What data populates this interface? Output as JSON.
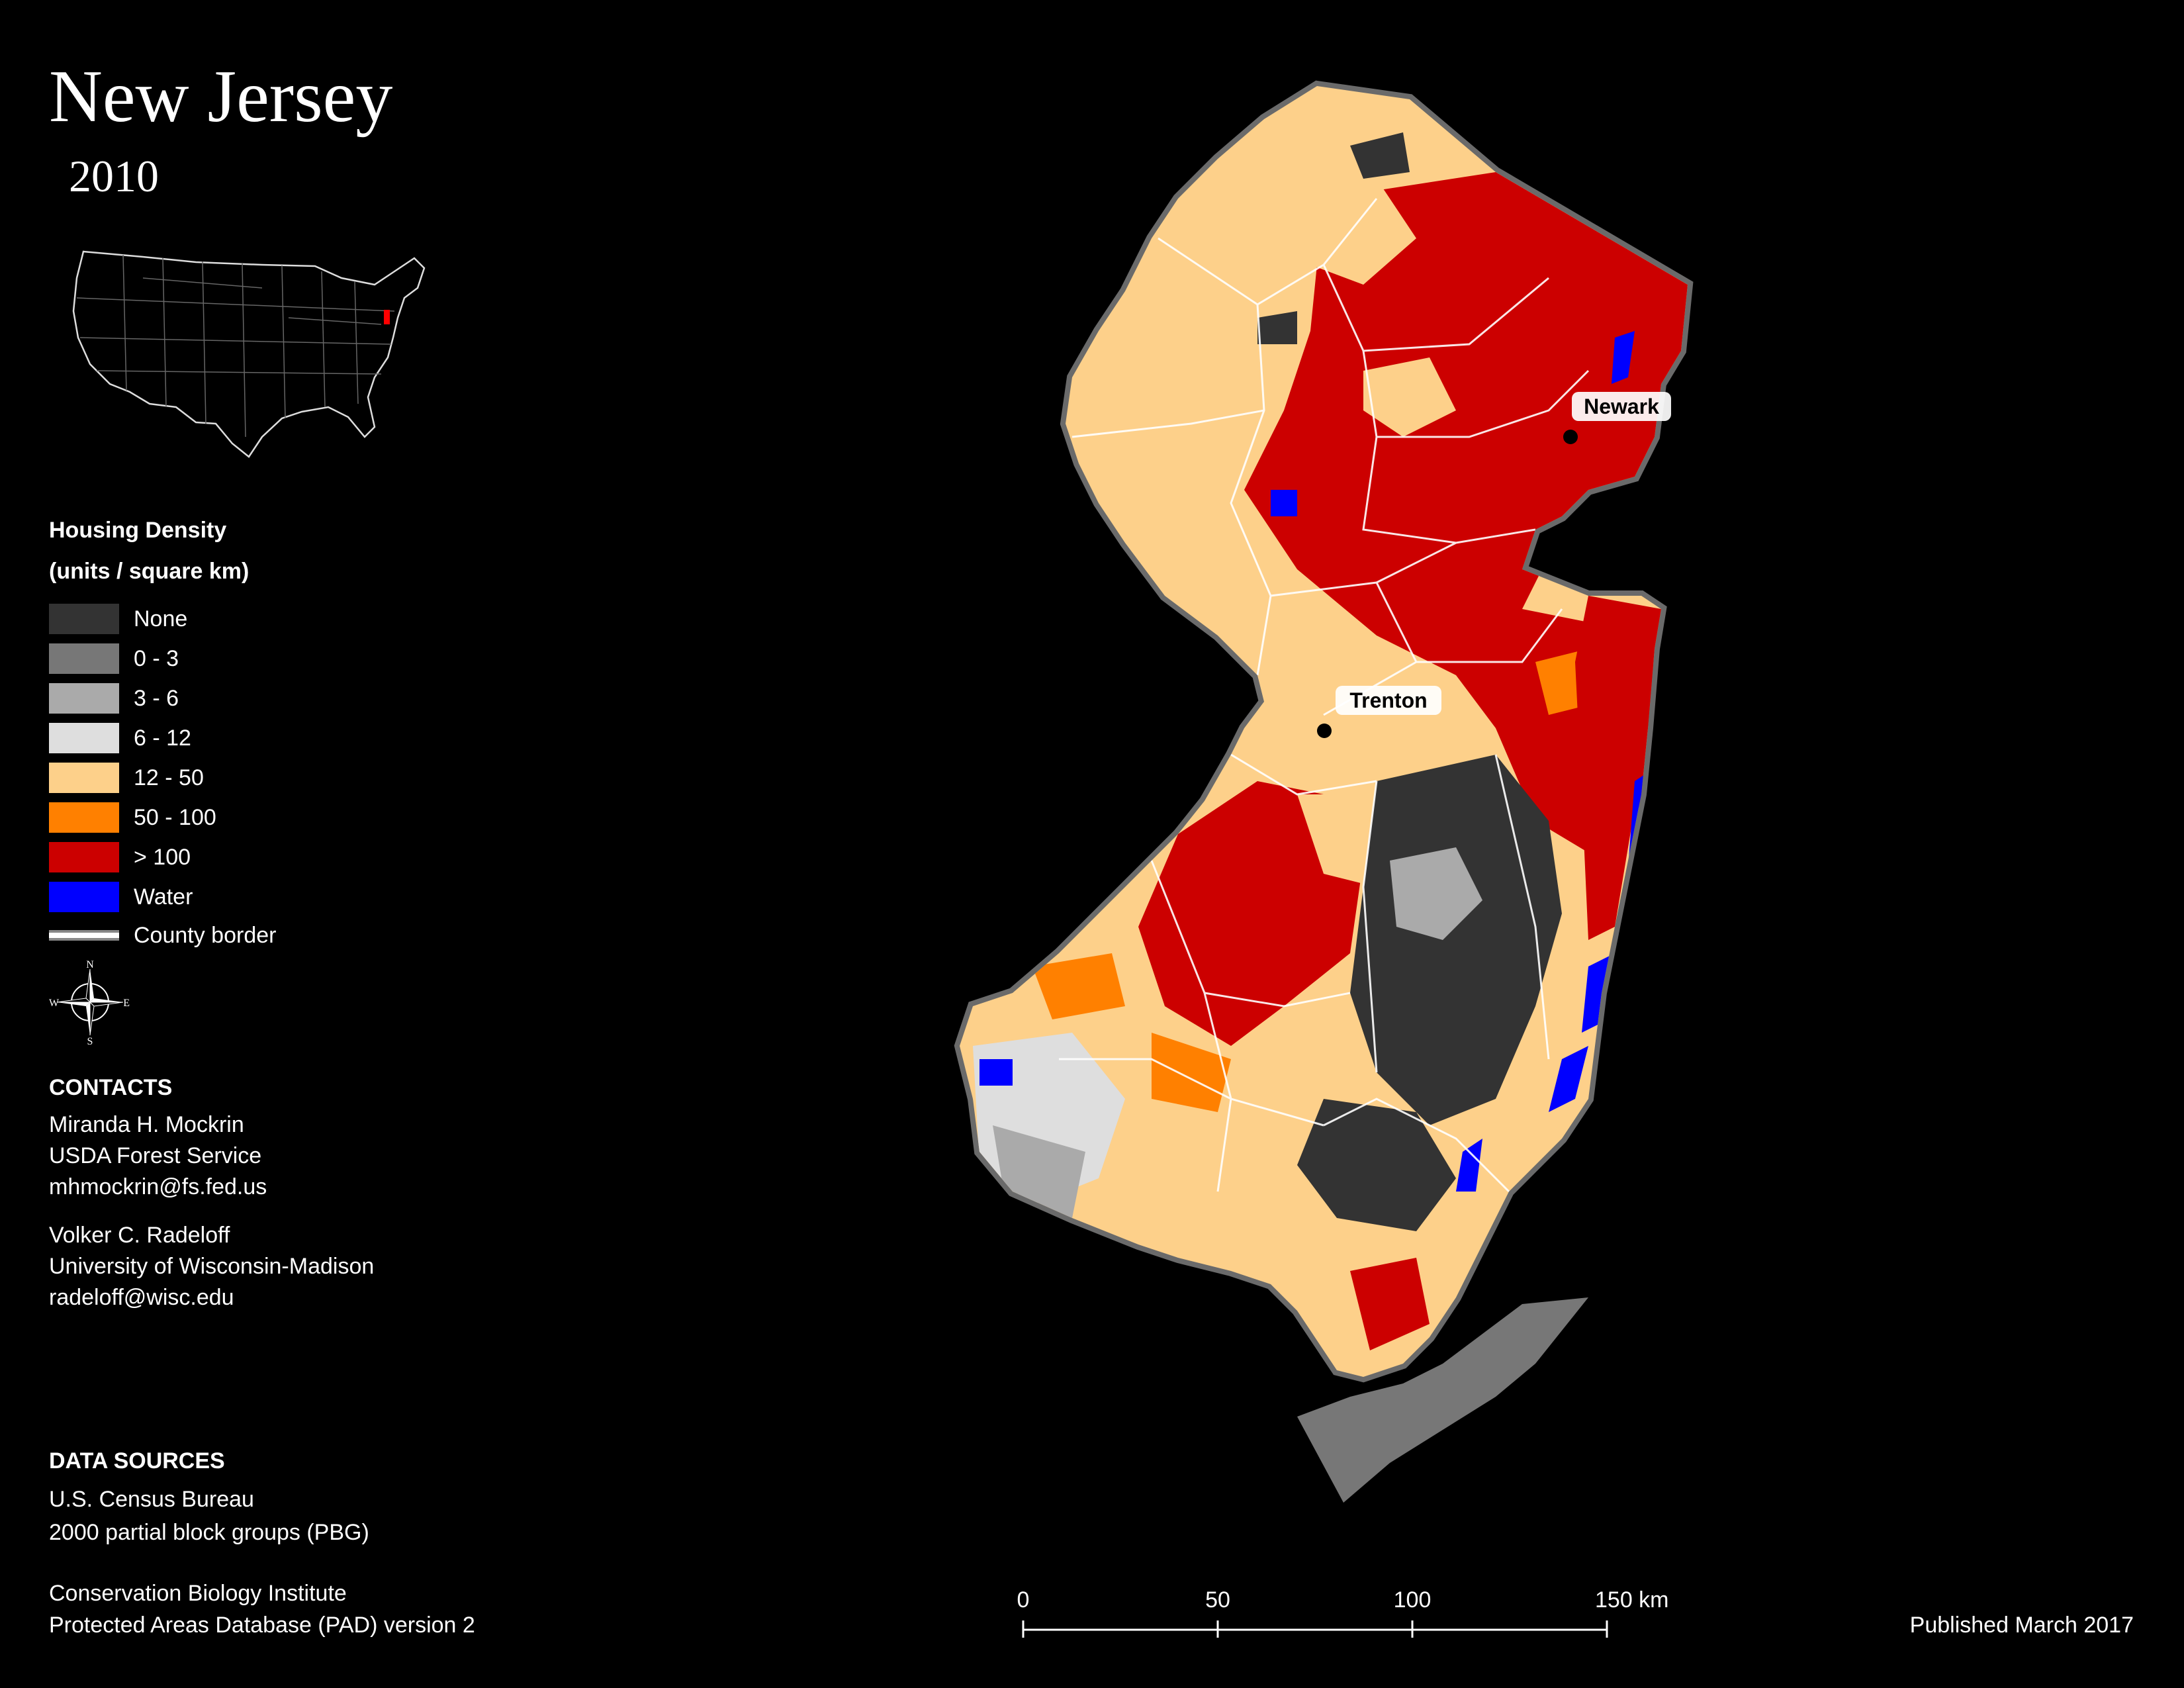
{
  "title": "New Jersey",
  "year": "2010",
  "legend": {
    "title": "Housing Density",
    "units": "(units / square km)",
    "items": [
      {
        "label": "None",
        "color": "#333333"
      },
      {
        "label": "0 - 3",
        "color": "#777777"
      },
      {
        "label": "3 - 6",
        "color": "#aaaaaa"
      },
      {
        "label": "6 - 12",
        "color": "#dedede"
      },
      {
        "label": "12 - 50",
        "color": "#fdd08a"
      },
      {
        "label": "50 - 100",
        "color": "#ff8000"
      },
      {
        "label": "> 100",
        "color": "#cc0000"
      },
      {
        "label": "Water",
        "color": "#0000ff"
      }
    ],
    "county_border_label": "County border"
  },
  "compass": {
    "n": "N",
    "s": "S",
    "e": "E",
    "w": "W"
  },
  "contacts": {
    "heading": "CONTACTS",
    "people": [
      {
        "name": "Miranda H. Mockrin",
        "org": "USDA Forest Service",
        "email": "mhmockrin@fs.fed.us"
      },
      {
        "name": "Volker C. Radeloff",
        "org": "University of Wisconsin-Madison",
        "email": "radeloff@wisc.edu"
      }
    ]
  },
  "data_sources": {
    "heading": "DATA SOURCES",
    "lines": [
      "U.S. Census Bureau",
      "2000 partial block groups (PBG)",
      "Conservation Biology Institute",
      "Protected Areas Database (PAD) version 2"
    ]
  },
  "cities": [
    {
      "name": "Newark"
    },
    {
      "name": "Trenton"
    }
  ],
  "scale": {
    "ticks": [
      "0",
      "50",
      "100",
      "150 km"
    ]
  },
  "published": "Published March 2017"
}
